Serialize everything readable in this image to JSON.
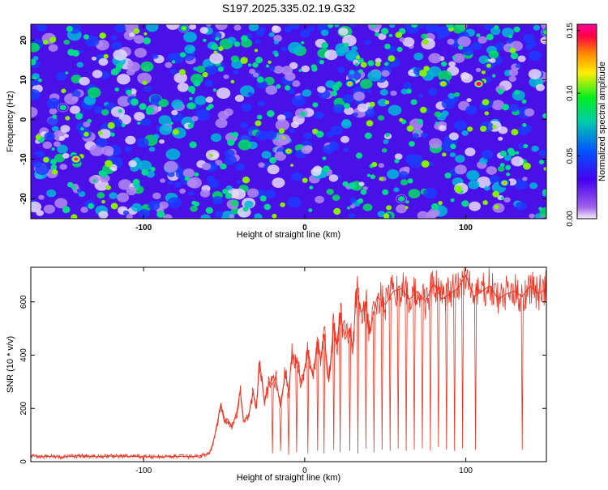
{
  "title": "S197.2025.335.02.19.G32",
  "colors": {
    "line": "#ee3322",
    "axis": "#000000",
    "colormap": [
      "#f4f0fa",
      "#a060ea",
      "#4400f0",
      "#0055ff",
      "#00ccaa",
      "#00ee22",
      "#ffee00",
      "#ff8800",
      "#ff0044",
      "#ff0099"
    ]
  },
  "chart_data": [
    {
      "type": "heatmap",
      "xlabel": "Height of straight line (km)",
      "ylabel": "Frequency (Hz)",
      "xlim": [
        -170,
        150
      ],
      "ylim": [
        -25,
        24
      ],
      "x_ticks": [
        -100,
        0,
        100
      ],
      "y_ticks": [
        -20,
        -10,
        0,
        10,
        20
      ],
      "colorbar": {
        "label": "Normalized spectral amplitude",
        "range": [
          0,
          0.155
        ],
        "ticks": [
          0.0,
          0.05,
          0.1,
          0.15
        ],
        "tick_labels": [
          "0.00",
          "0.05",
          "0.10",
          "0.15"
        ]
      },
      "values_description_note": "",
      "hotspots": [
        {
          "x": 108,
          "y": 9,
          "v": 0.15
        },
        {
          "x": 86,
          "y": 9,
          "v": 0.12
        },
        {
          "x": -142,
          "y": -10,
          "v": 0.14
        },
        {
          "x": -10,
          "y": -8,
          "v": 0.12
        },
        {
          "x": 124,
          "y": -16,
          "v": 0.11
        },
        {
          "x": 28,
          "y": 9,
          "v": 0.11
        },
        {
          "x": -75,
          "y": 23,
          "v": 0.1
        },
        {
          "x": 150,
          "y": 22,
          "v": 0.1
        },
        {
          "x": -150,
          "y": 3,
          "v": 0.09
        },
        {
          "x": 60,
          "y": -20,
          "v": 0.09
        }
      ],
      "background_level": 0.03
    },
    {
      "type": "line",
      "xlabel": "Height of straight line (km)",
      "ylabel": "SNR (10 * v/v)",
      "xlim": [
        -170,
        150
      ],
      "ylim": [
        0,
        730
      ],
      "x_ticks": [
        -100,
        0,
        100
      ],
      "y_ticks": [
        0,
        200,
        400,
        600
      ],
      "series": [
        {
          "x": [
            -170,
            -160,
            -150,
            -140,
            -130,
            -120,
            -110,
            -100,
            -90,
            -80,
            -70,
            -65,
            -60,
            -58,
            -55,
            -52,
            -50,
            -48,
            -45,
            -42,
            -40,
            -38,
            -35,
            -32,
            -30,
            -28,
            -25,
            -22,
            -20,
            -18,
            -15,
            -12,
            -10,
            -8,
            -5,
            -2,
            0,
            2,
            5,
            8,
            10,
            12,
            15,
            18,
            20,
            22,
            25,
            28,
            30,
            32,
            35,
            38,
            40,
            45,
            50,
            55,
            60,
            65,
            70,
            75,
            80,
            85,
            90,
            95,
            100,
            105,
            110,
            115,
            120,
            125,
            130,
            135,
            140,
            145,
            150
          ],
          "y": [
            22,
            20,
            18,
            22,
            19,
            21,
            20,
            19,
            18,
            20,
            19,
            22,
            28,
            45,
            120,
            220,
            150,
            160,
            130,
            190,
            270,
            150,
            170,
            260,
            200,
            380,
            220,
            300,
            290,
            320,
            200,
            340,
            260,
            400,
            380,
            290,
            350,
            420,
            320,
            450,
            380,
            480,
            300,
            520,
            440,
            560,
            460,
            500,
            420,
            650,
            560,
            600,
            480,
            620,
            590,
            640,
            650,
            610,
            640,
            600,
            670,
            610,
            630,
            650,
            700,
            620,
            640,
            660,
            610,
            630,
            640,
            620,
            660,
            630,
            650
          ]
        }
      ],
      "dips": [
        {
          "x": -20,
          "y": 30
        },
        {
          "x": -15,
          "y": 40
        },
        {
          "x": -10,
          "y": 25
        },
        {
          "x": -5,
          "y": 35
        },
        {
          "x": 2,
          "y": 30
        },
        {
          "x": 8,
          "y": 40
        },
        {
          "x": 12,
          "y": 30
        },
        {
          "x": 18,
          "y": 45
        },
        {
          "x": 22,
          "y": 35
        },
        {
          "x": 28,
          "y": 40
        },
        {
          "x": 33,
          "y": 30
        },
        {
          "x": 38,
          "y": 50
        },
        {
          "x": 43,
          "y": 35
        },
        {
          "x": 48,
          "y": 45
        },
        {
          "x": 53,
          "y": 40
        },
        {
          "x": 58,
          "y": 50
        },
        {
          "x": 63,
          "y": 40
        },
        {
          "x": 68,
          "y": 45
        },
        {
          "x": 73,
          "y": 50
        },
        {
          "x": 78,
          "y": 40
        },
        {
          "x": 83,
          "y": 55
        },
        {
          "x": 88,
          "y": 45
        },
        {
          "x": 93,
          "y": 40
        },
        {
          "x": 98,
          "y": 50
        },
        {
          "x": 106,
          "y": 45
        },
        {
          "x": 135,
          "y": 45
        }
      ]
    }
  ]
}
